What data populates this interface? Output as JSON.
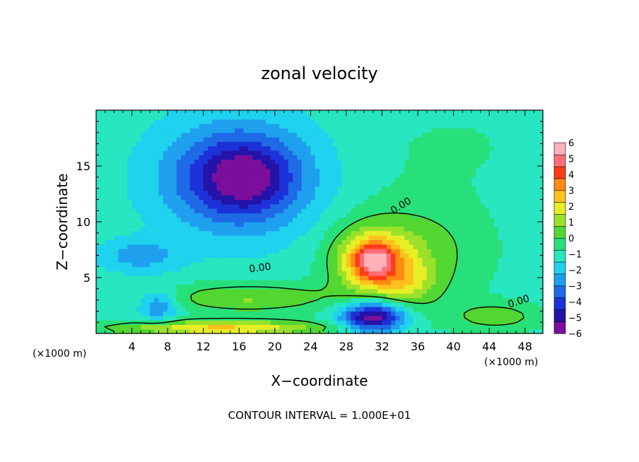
{
  "chart_data": {
    "type": "heatmap",
    "title": "zonal velocity",
    "xlabel": "X−coordinate",
    "ylabel": "Z−coordinate",
    "x_unit_note_left": "(×1000 m)",
    "x_unit_note_right": "(×1000 m)",
    "xlim": [
      0,
      50
    ],
    "ylim": [
      0,
      20
    ],
    "x_ticks": [
      4,
      8,
      12,
      16,
      20,
      24,
      28,
      32,
      36,
      40,
      44,
      48
    ],
    "y_ticks": [
      5,
      10,
      15
    ],
    "colorbar": {
      "range": [
        -6,
        6
      ],
      "ticks": [
        -6,
        -5,
        -4,
        -3,
        -2,
        -1,
        0,
        1,
        2,
        3,
        4,
        5,
        6
      ],
      "tick_labels": [
        "−6",
        "−5",
        "−4",
        "−3",
        "−2",
        "−1",
        "0",
        "1",
        "2",
        "3",
        "4",
        "5",
        "6"
      ]
    },
    "contour_label": "0.00",
    "contour_labels": [
      "0.00",
      "0.00",
      "0.00"
    ],
    "footer": "CONTOUR INTERVAL = 1.000E+01",
    "field_features": [
      {
        "name": "upper jet (negative)",
        "x": 16,
        "z": 14,
        "value": -4.2,
        "sx": 5.5,
        "sz": 3.2
      },
      {
        "name": "upper jet core",
        "x": 17,
        "z": 14,
        "value": -1.2,
        "sx": 2.5,
        "sz": 1.6
      },
      {
        "name": "positive lobe",
        "x": 31,
        "z": 6.5,
        "value": 4.0,
        "sx": 3.0,
        "sz": 2.0
      },
      {
        "name": "positive lobe core",
        "x": 31,
        "z": 6.5,
        "value": 2.5,
        "sx": 1.4,
        "sz": 1.0
      },
      {
        "name": "positive shoulder",
        "x": 35,
        "z": 4.5,
        "value": 1.5,
        "sx": 2.5,
        "sz": 1.5
      },
      {
        "name": "broad positive region",
        "x": 36,
        "z": 7.5,
        "value": 1.5,
        "sx": 6.0,
        "sz": 3.5
      },
      {
        "name": "low-level negative",
        "x": 31,
        "z": 1.5,
        "value": -5.0,
        "sx": 2.5,
        "sz": 1.0
      },
      {
        "name": "low-level positive band",
        "x": 17,
        "z": 3.2,
        "value": 2.0,
        "sx": 7.0,
        "sz": 1.0
      },
      {
        "name": "surface positive band",
        "x": 14,
        "z": 0.5,
        "value": 3.5,
        "sx": 9.0,
        "sz": 0.5
      },
      {
        "name": "left negative spot",
        "x": 7,
        "z": 2.5,
        "value": -2.0,
        "sx": 1.5,
        "sz": 1.0
      },
      {
        "name": "right low-level positive",
        "x": 45,
        "z": 1.5,
        "value": 1.5,
        "sx": 4.0,
        "sz": 1.0
      },
      {
        "name": "background drift",
        "x": 40,
        "z": 17,
        "value": 0.5,
        "sx": 8.0,
        "sz": 3.0
      },
      {
        "name": "left mid-level negative",
        "x": 5,
        "z": 7,
        "value": -1.5,
        "sx": 3.0,
        "sz": 1.0
      }
    ],
    "background_value": -1.2
  }
}
